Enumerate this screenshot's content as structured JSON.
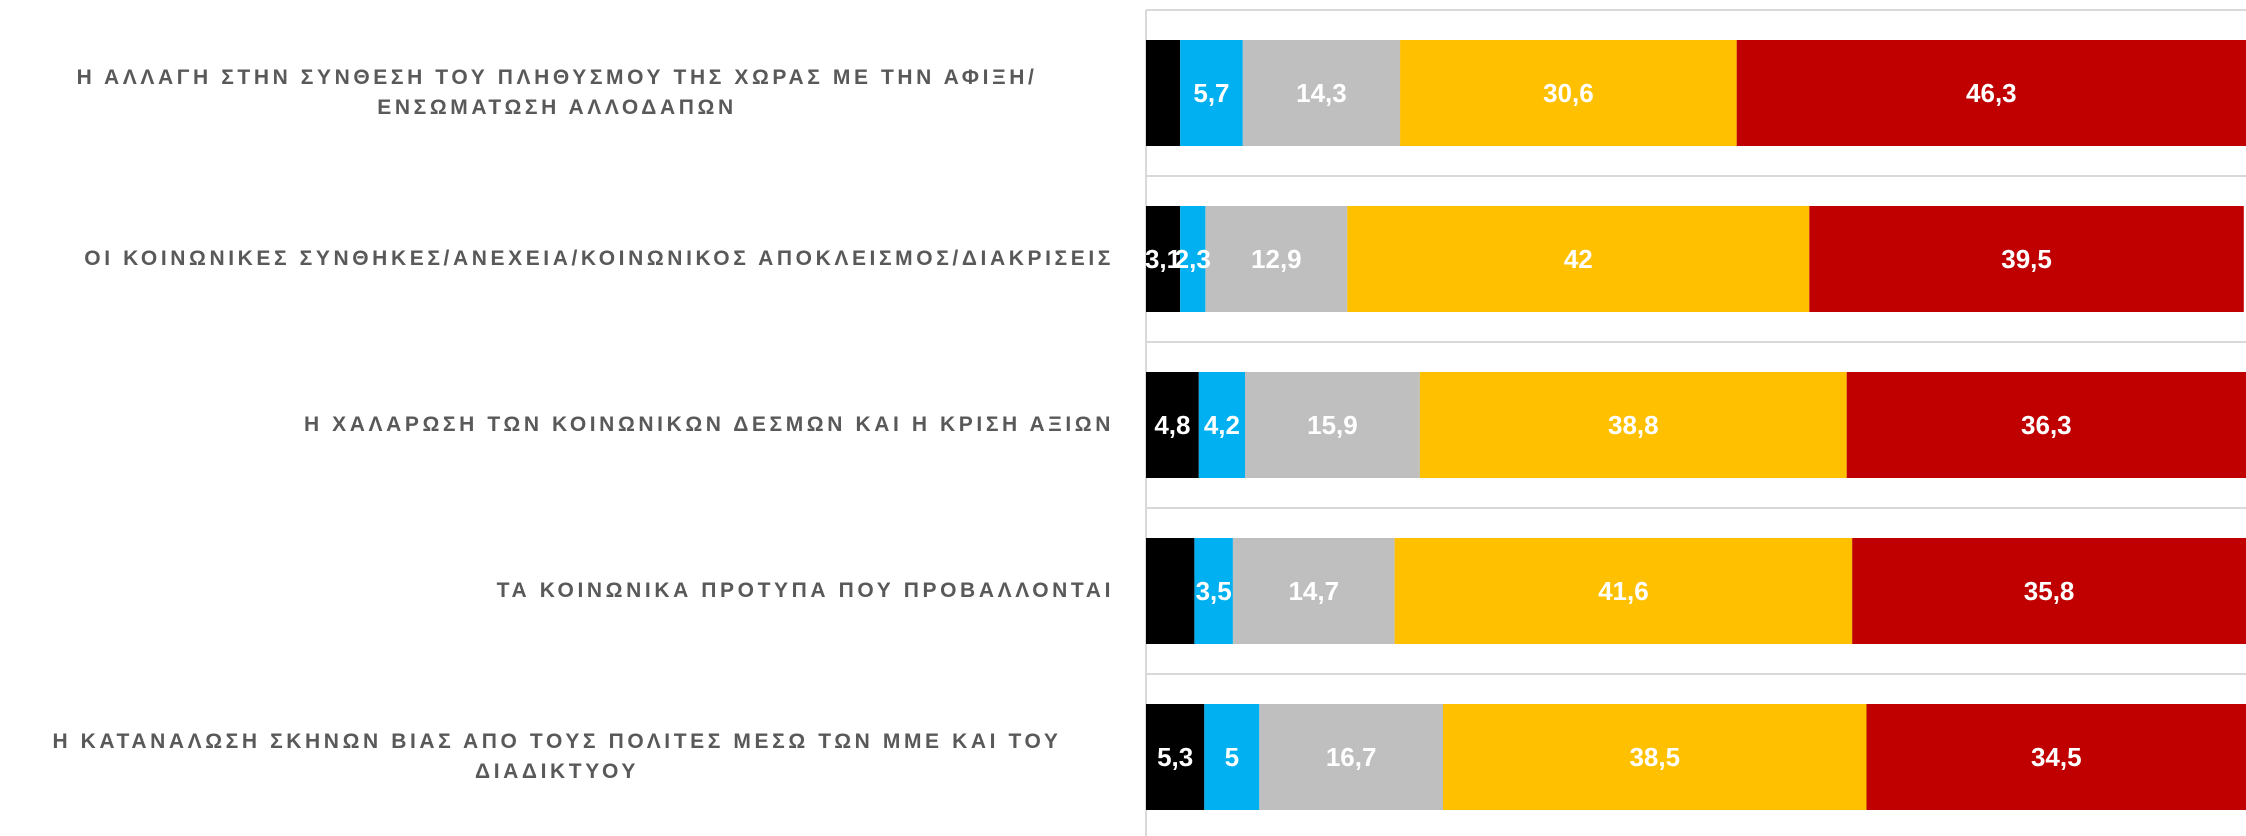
{
  "chart_data": {
    "type": "stacked_barh",
    "categories": [
      "Η ΑΛΛΑΓΗ ΣΤΗΝ ΣΥΝΘΕΣΗ ΤΟΥ ΠΛΗΘΥΣΜΟΥ ΤΗΣ ΧΩΡΑΣ ΜΕ ΤΗΝ ΑΦΙΞΗ/ΕΝΣΩΜΑΤΩΣΗ ΑΛΛΟΔΑΠΩΝ",
      "ΟΙ ΚΟΙΝΩΝΙΚΕΣ ΣΥΝΘΗΚΕΣ/ΑΝΕΧΕΙΑ/ΚΟΙΝΩΝΙΚΟΣ ΑΠΟΚΛΕΙΣΜΟΣ/ΔΙΑΚΡΙΣΕΙΣ",
      "Η ΧΑΛΑΡΩΣΗ ΤΩΝ ΚΟΙΝΩΝΙΚΩΝ ΔΕΣΜΩΝ ΚΑΙ Η ΚΡΙΣΗ ΑΞΙΩΝ",
      "ΤΑ ΚΟΙΝΩΝΙΚΑ ΠΡΟΤΥΠΑ ΠΟΥ ΠΡΟΒΑΛΛΟΝΤΑΙ",
      "Η ΚΑΤΑΝΑΛΩΣΗ ΣΚΗΝΩΝ ΒΙΑΣ ΑΠΟ ΤΟΥΣ ΠΟΛΙΤΕΣ ΜΕΣΩ ΤΩΝ ΜΜΕ ΚΑΙ ΤΟΥ ΔΙΑΔΙΚΤΥΟΥ"
    ],
    "series": [
      {
        "color": "#000000",
        "values": [
          3.1,
          3.1,
          4.8,
          4.4,
          5.3
        ],
        "value_labels": [
          null,
          "3,1",
          "4,8",
          null,
          "5,3"
        ]
      },
      {
        "color": "#00b0f0",
        "values": [
          5.7,
          2.3,
          4.2,
          3.5,
          5
        ],
        "value_labels": [
          "5,7",
          "2,3",
          "4,2",
          "3,5",
          "5"
        ]
      },
      {
        "color": "#bfbfbf",
        "values": [
          14.3,
          12.9,
          15.9,
          14.7,
          16.7
        ],
        "value_labels": [
          "14,3",
          "12,9",
          "15,9",
          "14,7",
          "16,7"
        ]
      },
      {
        "color": "#ffc000",
        "values": [
          30.6,
          42,
          38.8,
          41.6,
          38.5
        ],
        "value_labels": [
          "30,6",
          "42",
          "38,8",
          "41,6",
          "38,5"
        ]
      },
      {
        "color": "#c00000",
        "values": [
          46.3,
          39.5,
          36.3,
          35.8,
          34.5
        ],
        "value_labels": [
          "46,3",
          "39,5",
          "36,3",
          "35,8",
          "34,5"
        ]
      }
    ],
    "xlim": [
      0,
      100
    ]
  }
}
